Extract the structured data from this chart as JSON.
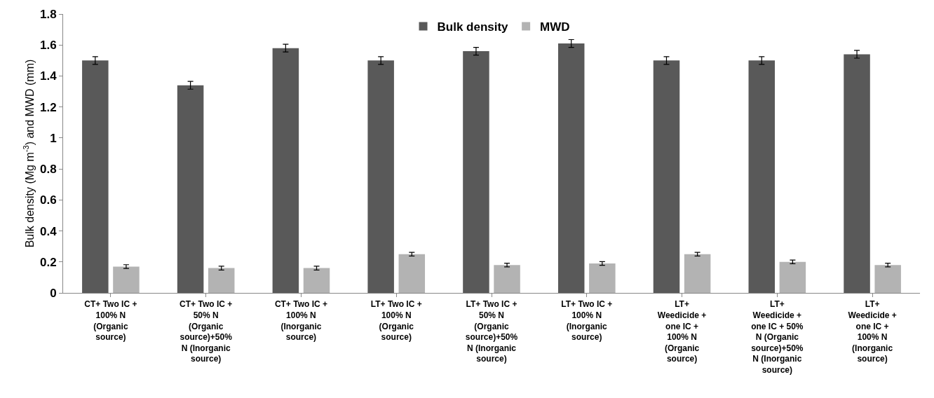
{
  "chart_data": {
    "type": "bar",
    "ylabel": "Bulk density (Mg m$^{-3}$) and MWD (mm)",
    "categories": [
      "CT+ Two IC + 100% N (Organic source)",
      "CT+ Two IC + 50% N (Organic source)+50% N (Inorganic source)",
      "CT+ Two IC + 100% N (Inorganic source)",
      "LT+ Two IC + 100% N (Organic source)",
      "LT+ Two IC + 50% N (Organic source)+50% N (Inorganic source)",
      "LT+ Two IC + 100% N (Inorganic source)",
      "LT+ Weedicide + one IC + 100% N (Organic source)",
      "LT+ Weedicide + one IC + 50% N (Organic source)+50% N (Inorganic source)",
      "LT+ Weedicide + one IC + 100% N (Inorganic source)"
    ],
    "series": [
      {
        "name": "Bulk density",
        "color": "#595959",
        "values": [
          1.5,
          1.34,
          1.58,
          1.5,
          1.56,
          1.61,
          1.5,
          1.5,
          1.54
        ],
        "errors": [
          0.025,
          0.025,
          0.025,
          0.025,
          0.025,
          0.025,
          0.025,
          0.025,
          0.025
        ]
      },
      {
        "name": "MWD",
        "color": "#b3b3b3",
        "values": [
          0.17,
          0.16,
          0.16,
          0.25,
          0.18,
          0.19,
          0.25,
          0.2,
          0.18
        ],
        "errors": [
          0.012,
          0.012,
          0.012,
          0.012,
          0.012,
          0.012,
          0.012,
          0.012,
          0.012
        ]
      }
    ],
    "ylim": [
      0,
      1.8
    ],
    "yticks": [
      0,
      0.2,
      0.4,
      0.6,
      0.8,
      1,
      1.2,
      1.4,
      1.6,
      1.8
    ],
    "grid": false,
    "legend": "top"
  }
}
